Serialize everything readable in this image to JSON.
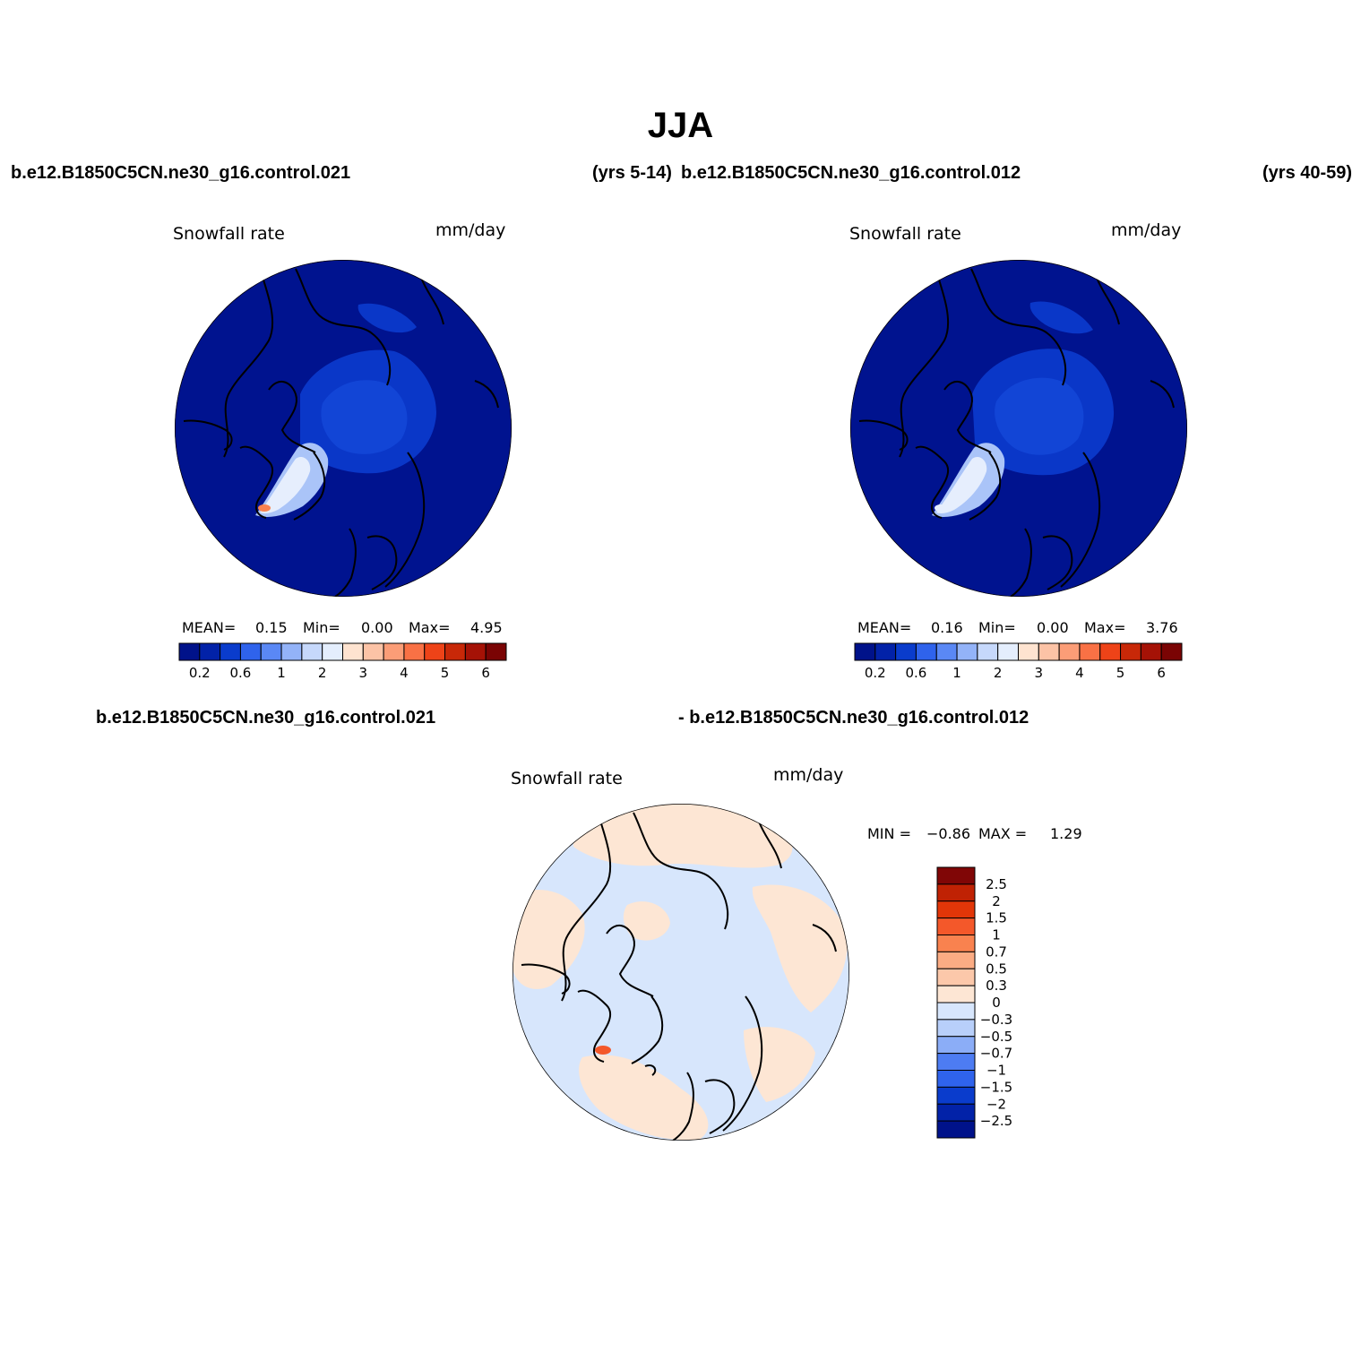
{
  "title": "JJA",
  "top_left_case": "b.e12.B1850C5CN.ne30_g16.control.021",
  "top_left_years": "(yrs 5-14)",
  "top_right_case": "b.e12.B1850C5CN.ne30_g16.control.012",
  "top_right_years": "(yrs 40-59)",
  "bottom_case_a": "b.e12.B1850C5CN.ne30_g16.control.021",
  "bottom_case_b": "- b.e12.B1850C5CN.ne30_g16.control.012",
  "panels": [
    {
      "variable": "Snowfall rate",
      "units": "mm/day",
      "mean_label": "MEAN=",
      "mean": "0.15",
      "min_label": "Min=",
      "min": "0.00",
      "max_label": "Max=",
      "max": "4.95"
    },
    {
      "variable": "Snowfall rate",
      "units": "mm/day",
      "mean_label": "MEAN=",
      "mean": "0.16",
      "min_label": "Min=",
      "min": "0.00",
      "max_label": "Max=",
      "max": "3.76"
    },
    {
      "variable": "Snowfall rate",
      "units": "mm/day",
      "min_label": "MIN =",
      "min": "−0.86",
      "max_label": "MAX =",
      "max": "1.29"
    }
  ],
  "abs_colorbar": {
    "colors": [
      "#00128a",
      "#0222a8",
      "#0a3ccc",
      "#2f63ec",
      "#5a88f5",
      "#93b3f8",
      "#c6d8fb",
      "#e4eefd",
      "#fee3d0",
      "#fcc3a6",
      "#fb9d77",
      "#f97145",
      "#ee4318",
      "#c82808",
      "#a51206",
      "#7a0404"
    ],
    "tick_labels": [
      "0.2",
      "0.6",
      "1",
      "2",
      "3",
      "4",
      "5",
      "6"
    ]
  },
  "diff_colorbar": {
    "colors": [
      "#00128a",
      "#0222a8",
      "#0a3ccc",
      "#2f63ec",
      "#4d7cf2",
      "#8badf7",
      "#b8cffa",
      "#d7e6fc",
      "#fde6d4",
      "#fcc8aa",
      "#fbac84",
      "#f9824f",
      "#f4582a",
      "#e23608",
      "#c02204",
      "#800606"
    ],
    "tick_labels": [
      "2.5",
      "2",
      "1.5",
      "1",
      "0.7",
      "0.5",
      "0.3",
      "0",
      "−0.3",
      "−0.5",
      "−0.7",
      "−1",
      "−1.5",
      "−2",
      "−2.5"
    ]
  },
  "map_colors": {
    "ocean": "#00138f",
    "arctic_outer": "#0a37c8",
    "arctic_inner": "#1245d6",
    "greenland_light": "#aac4f8",
    "greenland_white": "#e6eefd",
    "greenland_peak": "#f9824f",
    "diff_base": "#d7e6fc",
    "diff_positive": "#fde6d4",
    "diff_peak": "#f4582a"
  }
}
